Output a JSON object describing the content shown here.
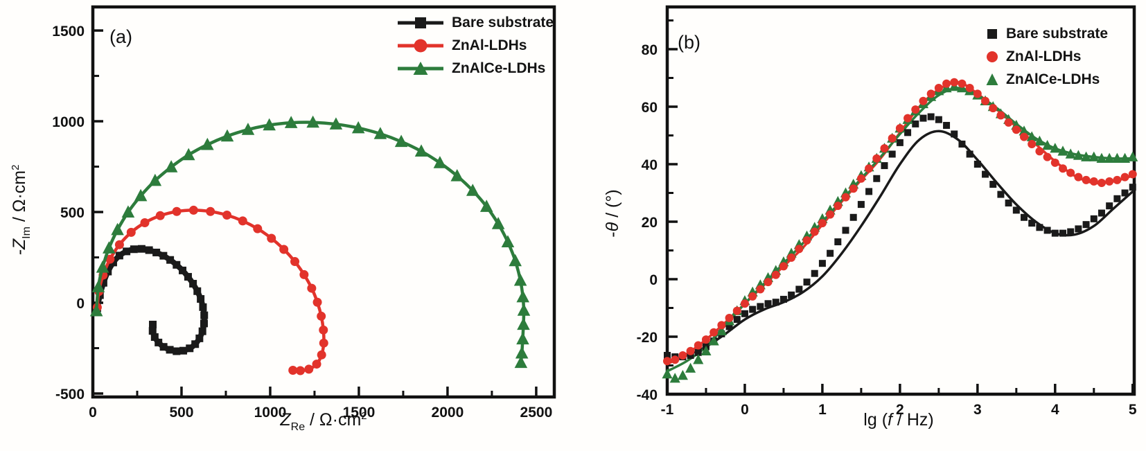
{
  "chart_data": [
    {
      "type": "scatter",
      "panel_label": "(a)",
      "line_connected": true,
      "xlabel": {
        "pre": "Z",
        "sub": "Re",
        "mid": " / Ω·cm",
        "sup": "2"
      },
      "ylabel": {
        "pre": "-Z",
        "sub": "Im",
        "mid": " / Ω·cm",
        "sup": "2"
      },
      "xlim": [
        0,
        2602
      ],
      "ylim": [
        -519,
        1630
      ],
      "xticks": [
        0,
        500,
        1000,
        1500,
        2000,
        2500
      ],
      "yticks": [
        -500,
        0,
        500,
        1000,
        1500
      ],
      "x_minor_step": 250,
      "y_minor_step": 250,
      "grid": false,
      "legend_position": "top-right",
      "legend_style": "line+marker",
      "series": [
        {
          "name": "Bare substrate",
          "color": "#1a1a1a",
          "marker": "square",
          "points": [
            [
              25,
              -30
            ],
            [
              40,
              42
            ],
            [
              60,
              110
            ],
            [
              85,
              172
            ],
            [
              115,
              222
            ],
            [
              150,
              260
            ],
            [
              190,
              283
            ],
            [
              232,
              295
            ],
            [
              275,
              297
            ],
            [
              317,
              290
            ],
            [
              358,
              277
            ],
            [
              398,
              259
            ],
            [
              436,
              236
            ],
            [
              472,
              209
            ],
            [
              506,
              178
            ],
            [
              537,
              143
            ],
            [
              565,
              105
            ],
            [
              589,
              64
            ],
            [
              608,
              21
            ],
            [
              621,
              -24
            ],
            [
              628,
              -69
            ],
            [
              627,
              -114
            ],
            [
              618,
              -157
            ],
            [
              601,
              -196
            ],
            [
              577,
              -228
            ],
            [
              546,
              -251
            ],
            [
              510,
              -264
            ],
            [
              472,
              -267
            ],
            [
              434,
              -259
            ],
            [
              399,
              -243
            ],
            [
              370,
              -219
            ],
            [
              349,
              -189
            ],
            [
              337,
              -155
            ],
            [
              338,
              -120
            ]
          ]
        },
        {
          "name": "ZnAl-LDHs",
          "color": "#e2332b",
          "marker": "circle",
          "points": [
            [
              25,
              -25
            ],
            [
              34,
              62
            ],
            [
              58,
              152
            ],
            [
              97,
              240
            ],
            [
              150,
              320
            ],
            [
              216,
              388
            ],
            [
              293,
              441
            ],
            [
              380,
              480
            ],
            [
              473,
              503
            ],
            [
              568,
              510
            ],
            [
              663,
              503
            ],
            [
              756,
              483
            ],
            [
              845,
              451
            ],
            [
              929,
              408
            ],
            [
              1007,
              355
            ],
            [
              1077,
              294
            ],
            [
              1139,
              227
            ],
            [
              1191,
              155
            ],
            [
              1234,
              80
            ],
            [
              1266,
              3
            ],
            [
              1288,
              -74
            ],
            [
              1300,
              -150
            ],
            [
              1302,
              -222
            ],
            [
              1290,
              -287
            ],
            [
              1262,
              -338
            ],
            [
              1218,
              -366
            ],
            [
              1170,
              -374
            ],
            [
              1128,
              -372
            ]
          ]
        },
        {
          "name": "ZnAlCe-LDHs",
          "color": "#2d7c3c",
          "marker": "triangle",
          "points": [
            [
              20,
              -45
            ],
            [
              31,
              87
            ],
            [
              55,
              195
            ],
            [
              91,
              301
            ],
            [
              139,
              402
            ],
            [
              199,
              499
            ],
            [
              270,
              589
            ],
            [
              351,
              673
            ],
            [
              442,
              748
            ],
            [
              540,
              815
            ],
            [
              646,
              871
            ],
            [
              758,
              918
            ],
            [
              875,
              954
            ],
            [
              995,
              979
            ],
            [
              1118,
              992
            ],
            [
              1241,
              994
            ],
            [
              1371,
              984
            ],
            [
              1497,
              963
            ],
            [
              1621,
              931
            ],
            [
              1739,
              888
            ],
            [
              1852,
              835
            ],
            [
              1957,
              771
            ],
            [
              2054,
              699
            ],
            [
              2142,
              618
            ],
            [
              2220,
              530
            ],
            [
              2286,
              435
            ],
            [
              2340,
              335
            ],
            [
              2382,
              231
            ],
            [
              2411,
              123
            ],
            [
              2425,
              32
            ],
            [
              2430,
              -42
            ],
            [
              2428,
              -120
            ],
            [
              2424,
              -200
            ],
            [
              2419,
              -278
            ],
            [
              2414,
              -330
            ]
          ]
        }
      ]
    },
    {
      "type": "scatter",
      "panel_label": "(b)",
      "line_connected": false,
      "xlabel": {
        "pre": "lg (",
        "ital": "f",
        "post": " / Hz)"
      },
      "ylabel": {
        "pre": "-",
        "ital": "θ",
        "post": " / (°)"
      },
      "xlim": [
        -1,
        5.02
      ],
      "ylim": [
        -40,
        94.7
      ],
      "xticks": [
        -1,
        0,
        1,
        2,
        3,
        4,
        5
      ],
      "yticks": [
        -40,
        -20,
        0,
        20,
        40,
        60,
        80
      ],
      "x_minor_step": 0.5,
      "y_minor_step": 10,
      "grid": false,
      "legend_position": "top-right",
      "legend_style": "marker-only",
      "series": [
        {
          "name": "Bare substrate",
          "color": "#1a1a1a",
          "marker": "square",
          "x_start": -1.0,
          "x_step": 0.1,
          "y": [
            -26.5,
            -27,
            -27,
            -26.5,
            -25.5,
            -23.5,
            -21.5,
            -19,
            -16.5,
            -14,
            -12,
            -10.5,
            -9.5,
            -8.5,
            -8,
            -7,
            -5.5,
            -3.5,
            -1,
            2,
            5.5,
            9,
            13,
            17,
            21.5,
            26,
            30.5,
            35,
            39.5,
            43.5,
            47.5,
            51,
            54,
            56,
            56.5,
            55.5,
            53.5,
            50.5,
            47,
            43.5,
            40,
            36.5,
            33,
            29.5,
            26.5,
            24,
            21.5,
            19.5,
            18,
            17,
            16,
            16,
            16.5,
            17.5,
            19,
            21,
            23,
            25.5,
            28,
            30,
            32
          ]
        },
        {
          "name": "ZnAl-LDHs",
          "color": "#e2332b",
          "marker": "circle",
          "x_start": -1.0,
          "x_step": 0.1,
          "y": [
            -28.5,
            -28,
            -26.5,
            -25,
            -23,
            -21,
            -18.5,
            -16,
            -13.5,
            -11,
            -8.5,
            -6,
            -3.5,
            -1,
            1.5,
            4.5,
            7.5,
            10.5,
            13.5,
            16.5,
            19.5,
            22.5,
            25.5,
            28.5,
            31.5,
            35,
            38.5,
            42,
            45.5,
            49,
            52.5,
            56,
            59,
            62,
            64.5,
            66.5,
            68,
            68.5,
            68,
            66.5,
            64.5,
            62,
            59.5,
            57,
            54.5,
            52,
            49.5,
            47,
            44.5,
            42.5,
            40.5,
            38.5,
            37,
            35.5,
            34.5,
            34,
            33.5,
            34,
            34.5,
            35.5,
            36.5
          ]
        },
        {
          "name": "ZnAlCe-LDHs",
          "color": "#2d7c3c",
          "marker": "triangle",
          "x_start": -1.0,
          "x_step": 0.1,
          "y": [
            -33,
            -34.5,
            -33.5,
            -31,
            -28,
            -25,
            -21.5,
            -18,
            -14.5,
            -11,
            -7.5,
            -4.5,
            -2,
            0.5,
            3,
            6,
            9,
            12,
            15,
            18,
            21,
            24,
            27,
            30,
            33,
            36,
            39,
            42,
            45.5,
            49,
            52.5,
            55.5,
            58.5,
            61,
            63.5,
            65.5,
            66.5,
            67,
            66.5,
            65.5,
            64,
            62,
            60,
            57.5,
            55.5,
            53.5,
            51.5,
            49.5,
            48,
            46.5,
            45.5,
            44.5,
            43.5,
            43,
            42.5,
            42.5,
            42,
            42,
            42,
            42,
            42.5
          ]
        }
      ],
      "fit_lines": [
        {
          "series": "Bare substrate",
          "color": "#1a1a1a",
          "x_start": -1.0,
          "x_step": 0.25,
          "y": [
            -28.5,
            -26.5,
            -23.5,
            -19,
            -14,
            -10.5,
            -8,
            -4.5,
            1,
            9,
            18.5,
            29,
            40,
            48.5,
            51.5,
            48.5,
            41.5,
            33.5,
            26,
            20,
            16,
            15.5,
            18.5,
            24.5,
            30.5
          ]
        },
        {
          "series": "ZnAl-LDHs",
          "color": "#e2332b",
          "x_start": -1.0,
          "x_step": 0.25,
          "y": [
            -29.5,
            -26,
            -21,
            -15,
            -8.5,
            -2,
            4.5,
            11,
            19,
            27,
            34.5,
            42,
            51,
            60,
            66,
            68.5,
            64.5,
            59,
            53,
            47,
            41,
            36,
            33.5,
            34,
            36
          ]
        },
        {
          "series": "ZnAlCe-LDHs",
          "color": "#2d7c3c",
          "x_start": -1.0,
          "x_step": 0.25,
          "y": [
            -32,
            -28.5,
            -23.5,
            -16,
            -8.5,
            -1.5,
            5.5,
            12.5,
            20,
            27.5,
            35,
            42.5,
            50.5,
            58,
            64,
            66.5,
            64,
            59.5,
            54,
            49,
            45.5,
            43.5,
            42.5,
            42,
            42
          ]
        }
      ]
    }
  ]
}
